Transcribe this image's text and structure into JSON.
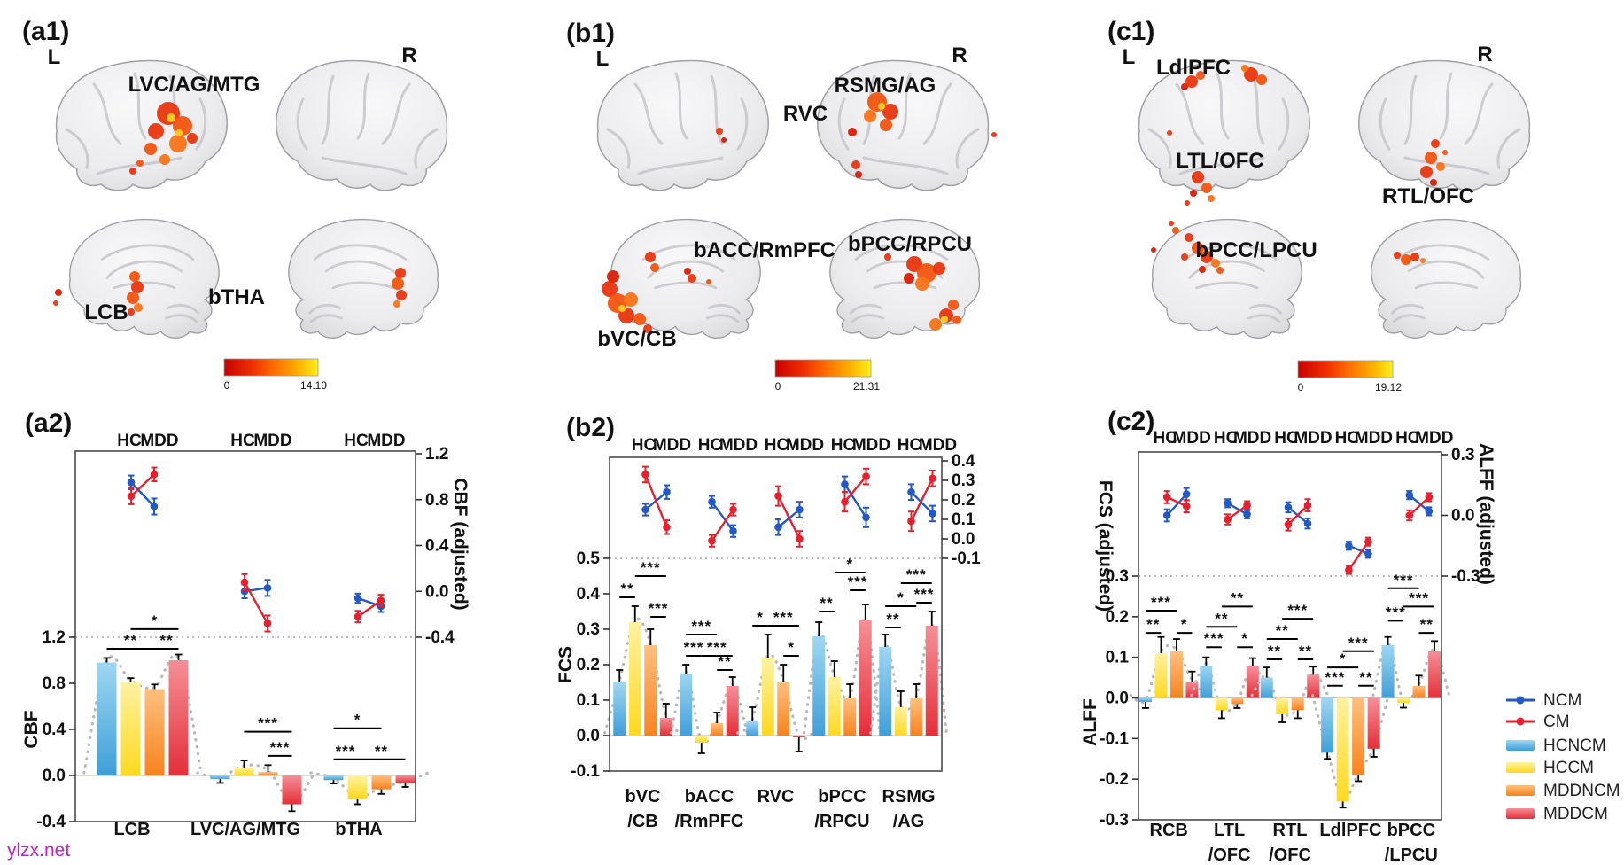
{
  "figure": {
    "watermark": "ylzx.net",
    "orientation_labels": {
      "left": "L",
      "right": "R"
    }
  },
  "colors": {
    "ncm": "#2359c5",
    "cm": "#e7202d",
    "hcncm": "#55aee2",
    "hccm": "#ffdf2e",
    "mddncm": "#fa8b2e",
    "mddcm": "#ea3a43",
    "activation_palette": [
      "#d81e06",
      "#e8350f",
      "#f25410",
      "#f97316",
      "#ffd21e"
    ],
    "heat_low": "#c80000",
    "heat_high": "#fff020"
  },
  "brain_panels": [
    {
      "id": "a1",
      "label": "(a1)",
      "regions": [
        "LVC/AG/MTG",
        "LCB",
        "bTHA"
      ],
      "colorbar": {
        "min": "0",
        "max": "14.19"
      }
    },
    {
      "id": "b1",
      "label": "(b1)",
      "regions": [
        "RSMG/AG",
        "RVC",
        "bACC/RmPFC",
        "bPCC/RPCU",
        "bVC/CB"
      ],
      "colorbar": {
        "min": "0",
        "max": "21.31"
      }
    },
    {
      "id": "c1",
      "label": "(c1)",
      "regions": [
        "LdlPFC",
        "LTL/OFC",
        "RTL/OFC",
        "bPCC/LPCU"
      ],
      "colorbar": {
        "min": "0",
        "max": "19.12"
      }
    }
  ],
  "chart_data": [
    {
      "id": "a2",
      "type": "bar",
      "label": "(a2)",
      "group_header": [
        "HC",
        "MDD"
      ],
      "left_axis": {
        "title": "CBF",
        "ticks": [
          "1.2",
          "0.8",
          "0.4",
          "0.0",
          "-0.4"
        ]
      },
      "right_axis": {
        "title": "CBF (adjusted)",
        "ticks": [
          "1.2",
          "0.8",
          "0.4",
          "0.0",
          "-0.4"
        ]
      },
      "series": [
        "HCNCM",
        "HCCM",
        "MDDNCM",
        "MDDCM"
      ],
      "categories": [
        "LCB",
        "LVC/AG/MTG",
        "bTHA"
      ],
      "category_lines": [
        [
          "LCB"
        ],
        [
          "LVC/AG/MTG"
        ],
        [
          "bTHA"
        ]
      ],
      "bars": [
        {
          "values": [
            0.98,
            0.81,
            0.75,
            1.0
          ],
          "errors": [
            0.04,
            0.035,
            0.04,
            0.05
          ]
        },
        {
          "values": [
            -0.03,
            0.07,
            0.03,
            -0.25
          ],
          "errors": [
            0.035,
            0.06,
            0.06,
            0.06
          ]
        },
        {
          "values": [
            -0.04,
            -0.2,
            -0.12,
            -0.07
          ],
          "errors": [
            0.03,
            0.05,
            0.04,
            0.03
          ]
        }
      ],
      "points": [
        {
          "HC": {
            "NCM": [
              0.95,
              0.06
            ],
            "CM": [
              0.83,
              0.07
            ]
          },
          "MDD": {
            "NCM": [
              0.74,
              0.07
            ],
            "CM": [
              1.02,
              0.06
            ]
          }
        },
        {
          "HC": {
            "NCM": [
              0.0,
              0.06
            ],
            "CM": [
              0.08,
              0.07
            ]
          },
          "MDD": {
            "NCM": [
              0.03,
              0.07
            ],
            "CM": [
              -0.28,
              0.07
            ]
          }
        },
        {
          "HC": {
            "NCM": [
              -0.06,
              0.04
            ],
            "CM": [
              -0.22,
              0.05
            ]
          },
          "MDD": {
            "NCM": [
              -0.13,
              0.05
            ],
            "CM": [
              -0.08,
              0.05
            ]
          }
        }
      ],
      "significance": [
        [
          [
            0,
            2,
            "**",
            1.1
          ],
          [
            1,
            3,
            "*",
            1.27
          ],
          [
            2,
            3,
            "**",
            1.1
          ]
        ],
        [
          [
            1,
            3,
            "***",
            0.38
          ],
          [
            2,
            3,
            "***",
            0.17
          ]
        ],
        [
          [
            0,
            1,
            "***",
            0.14
          ],
          [
            0,
            2,
            "*",
            0.41
          ],
          [
            1,
            3,
            "**",
            0.14
          ]
        ]
      ]
    },
    {
      "id": "b2",
      "type": "bar",
      "label": "(b2)",
      "group_header": [
        "HC",
        "MDD"
      ],
      "left_axis": {
        "title": "FCS",
        "ticks": [
          "0.5",
          "0.4",
          "0.3",
          "0.2",
          "0.1",
          "0.0",
          "-0.1"
        ]
      },
      "right_axis": {
        "title": "FCS (adjusted)",
        "ticks": [
          "0.4",
          "0.3",
          "0.2",
          "0.1",
          "0.0",
          "-0.1"
        ]
      },
      "series": [
        "HCNCM",
        "HCCM",
        "MDDNCM",
        "MDDCM"
      ],
      "categories": [
        "bVC/CB",
        "bACC/RmPFC",
        "RVC",
        "bPCC/RPCU",
        "RSMG/AG"
      ],
      "category_lines": [
        [
          "bVC",
          "/CB"
        ],
        [
          "bACC",
          "/RmPFC"
        ],
        [
          "RVC"
        ],
        [
          "bPCC",
          "/RPCU"
        ],
        [
          "RSMG",
          "/AG"
        ]
      ],
      "bars": [
        {
          "values": [
            0.15,
            0.32,
            0.255,
            0.05
          ],
          "errors": [
            0.035,
            0.045,
            0.045,
            0.04
          ]
        },
        {
          "values": [
            0.175,
            -0.02,
            0.035,
            0.14
          ],
          "errors": [
            0.025,
            0.03,
            0.03,
            0.025
          ]
        },
        {
          "values": [
            0.04,
            0.22,
            0.15,
            -0.005
          ],
          "errors": [
            0.04,
            0.065,
            0.05,
            0.04
          ]
        },
        {
          "values": [
            0.28,
            0.165,
            0.105,
            0.325
          ],
          "errors": [
            0.04,
            0.045,
            0.04,
            0.045
          ]
        },
        {
          "values": [
            0.25,
            0.08,
            0.105,
            0.31
          ],
          "errors": [
            0.035,
            0.045,
            0.04,
            0.04
          ]
        }
      ],
      "points": [
        {
          "HC": {
            "NCM": [
              0.15,
              0.03
            ],
            "CM": [
              0.33,
              0.04
            ]
          },
          "MDD": {
            "NCM": [
              0.24,
              0.035
            ],
            "CM": [
              0.06,
              0.035
            ]
          }
        },
        {
          "HC": {
            "NCM": [
              0.19,
              0.03
            ],
            "CM": [
              -0.01,
              0.03
            ]
          },
          "MDD": {
            "NCM": [
              0.04,
              0.03
            ],
            "CM": [
              0.15,
              0.03
            ]
          }
        },
        {
          "HC": {
            "NCM": [
              0.06,
              0.04
            ],
            "CM": [
              0.22,
              0.05
            ]
          },
          "MDD": {
            "NCM": [
              0.15,
              0.04
            ],
            "CM": [
              0.0,
              0.04
            ]
          }
        },
        {
          "HC": {
            "NCM": [
              0.28,
              0.04
            ],
            "CM": [
              0.19,
              0.05
            ]
          },
          "MDD": {
            "NCM": [
              0.11,
              0.05
            ],
            "CM": [
              0.32,
              0.04
            ]
          }
        },
        {
          "HC": {
            "NCM": [
              0.24,
              0.04
            ],
            "CM": [
              0.09,
              0.05
            ]
          },
          "MDD": {
            "NCM": [
              0.13,
              0.04
            ],
            "CM": [
              0.31,
              0.04
            ]
          }
        }
      ],
      "significance": [
        [
          [
            0,
            1,
            "**",
            0.39
          ],
          [
            1,
            3,
            "***",
            0.45
          ],
          [
            2,
            3,
            "***",
            0.335
          ]
        ],
        [
          [
            0,
            2,
            "***",
            0.285
          ],
          [
            0,
            1,
            "***",
            0.225
          ],
          [
            1,
            3,
            "***",
            0.225
          ],
          [
            2,
            3,
            "**",
            0.185
          ]
        ],
        [
          [
            0,
            1,
            "*",
            0.31
          ],
          [
            1,
            3,
            "***",
            0.31
          ],
          [
            2,
            3,
            "*",
            0.225
          ]
        ],
        [
          [
            0,
            1,
            "**",
            0.35
          ],
          [
            1,
            3,
            "*",
            0.46
          ],
          [
            2,
            3,
            "***",
            0.41
          ]
        ],
        [
          [
            0,
            1,
            "**",
            0.305
          ],
          [
            0,
            2,
            "*",
            0.365
          ],
          [
            1,
            3,
            "***",
            0.43
          ],
          [
            2,
            3,
            "***",
            0.375
          ]
        ]
      ]
    },
    {
      "id": "c2",
      "type": "bar",
      "label": "(c2)",
      "group_header": [
        "HC",
        "MDD"
      ],
      "left_axis": {
        "title": "ALFF",
        "ticks": [
          "0.3",
          "0.2",
          "0.1",
          "0.0",
          "-0.1",
          "-0.2",
          "-0.3"
        ]
      },
      "right_axis": {
        "title": "ALFF (adjusted)",
        "ticks": [
          "0.3",
          "0.0",
          "-0.3"
        ]
      },
      "series": [
        "HCNCM",
        "HCCM",
        "MDDNCM",
        "MDDCM"
      ],
      "categories": [
        "RCB",
        "LTL/OFC",
        "RTL/OFC",
        "LdlPFC",
        "bPCC/LPCU"
      ],
      "category_lines": [
        [
          "RCB"
        ],
        [
          "LTL",
          "/OFC"
        ],
        [
          "RTL",
          "/OFC"
        ],
        [
          "LdlPFC"
        ],
        [
          "bPCC",
          "/LPCU"
        ]
      ],
      "bars": [
        {
          "values": [
            -0.01,
            0.11,
            0.115,
            0.04
          ],
          "errors": [
            0.015,
            0.04,
            0.03,
            0.025
          ]
        },
        {
          "values": [
            0.08,
            -0.03,
            -0.015,
            0.078
          ],
          "errors": [
            0.02,
            0.02,
            0.01,
            0.02
          ]
        },
        {
          "values": [
            0.05,
            -0.04,
            -0.03,
            0.057
          ],
          "errors": [
            0.025,
            0.02,
            0.02,
            0.02
          ]
        },
        {
          "values": [
            -0.135,
            -0.255,
            -0.19,
            -0.125
          ],
          "errors": [
            0.015,
            0.015,
            0.015,
            0.02
          ]
        },
        {
          "values": [
            0.13,
            -0.012,
            0.03,
            0.115
          ],
          "errors": [
            0.02,
            0.012,
            0.025,
            0.025
          ]
        }
      ],
      "points": [
        {
          "HC": {
            "NCM": [
              0.0,
              0.03
            ],
            "CM": [
              0.09,
              0.03
            ]
          },
          "MDD": {
            "NCM": [
              0.105,
              0.03
            ],
            "CM": [
              0.045,
              0.03
            ]
          }
        },
        {
          "HC": {
            "NCM": [
              0.06,
              0.02
            ],
            "CM": [
              -0.02,
              0.025
            ]
          },
          "MDD": {
            "NCM": [
              0.005,
              0.02
            ],
            "CM": [
              0.05,
              0.02
            ]
          }
        },
        {
          "HC": {
            "NCM": [
              0.04,
              0.025
            ],
            "CM": [
              -0.045,
              0.03
            ]
          },
          "MDD": {
            "NCM": [
              -0.04,
              0.025
            ],
            "CM": [
              0.05,
              0.03
            ]
          }
        },
        {
          "HC": {
            "NCM": [
              -0.15,
              0.02
            ],
            "CM": [
              -0.27,
              0.02
            ]
          },
          "MDD": {
            "NCM": [
              -0.19,
              0.02
            ],
            "CM": [
              -0.13,
              0.02
            ]
          }
        },
        {
          "HC": {
            "NCM": [
              0.1,
              0.02
            ],
            "CM": [
              0.0,
              0.025
            ]
          },
          "MDD": {
            "NCM": [
              0.02,
              0.02
            ],
            "CM": [
              0.09,
              0.02
            ]
          }
        }
      ],
      "significance": [
        [
          [
            0,
            1,
            "**",
            0.16
          ],
          [
            0,
            2,
            "***",
            0.215
          ],
          [
            2,
            3,
            "*",
            0.16
          ]
        ],
        [
          [
            0,
            1,
            "***",
            0.125
          ],
          [
            0,
            2,
            "**",
            0.175
          ],
          [
            1,
            3,
            "**",
            0.225
          ],
          [
            2,
            3,
            "*",
            0.125
          ]
        ],
        [
          [
            0,
            1,
            "**",
            0.095
          ],
          [
            0,
            2,
            "**",
            0.145
          ],
          [
            1,
            3,
            "***",
            0.195
          ],
          [
            2,
            3,
            "**",
            0.095
          ]
        ],
        [
          [
            0,
            1,
            "***",
            0.03
          ],
          [
            0,
            2,
            "*",
            0.075
          ],
          [
            1,
            3,
            "***",
            0.115
          ],
          [
            2,
            3,
            "**",
            0.03
          ]
        ],
        [
          [
            0,
            1,
            "***",
            0.19
          ],
          [
            0,
            2,
            "***",
            0.27
          ],
          [
            1,
            3,
            "***",
            0.225
          ],
          [
            2,
            3,
            "**",
            0.16
          ]
        ]
      ]
    }
  ],
  "legend": {
    "items": [
      {
        "label": "NCM",
        "type": "line",
        "color_key": "ncm"
      },
      {
        "label": "CM",
        "type": "line",
        "color_key": "cm"
      },
      {
        "label": "HCNCM",
        "type": "bar",
        "color_key": "hcncm"
      },
      {
        "label": "HCCM",
        "type": "bar",
        "color_key": "hccm"
      },
      {
        "label": "MDDNCM",
        "type": "bar",
        "color_key": "mddncm"
      },
      {
        "label": "MDDCM",
        "type": "bar",
        "color_key": "mddcm"
      }
    ]
  }
}
